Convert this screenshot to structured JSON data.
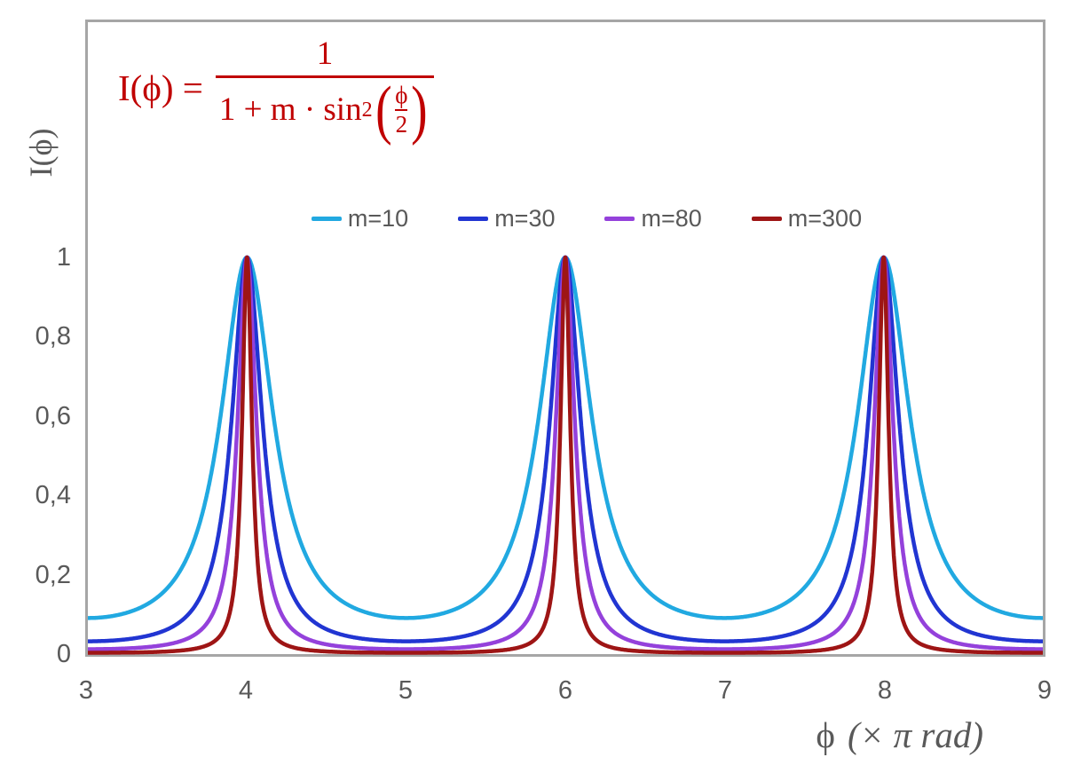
{
  "figure": {
    "background": "#ffffff",
    "frame_color": "#A6A6A6",
    "text_color": "#595959",
    "formula_color": "#C00000"
  },
  "formula": {
    "lhs": "I(ϕ) =",
    "numerator": "1",
    "den_prefix": "1 + m · sin",
    "den_sup": "2",
    "paren_open": "(",
    "paren_close": ")",
    "inner_numerator": "ϕ",
    "inner_denominator": "2"
  },
  "chart_data": {
    "type": "line",
    "title": "",
    "ylabel": "I(ϕ)",
    "xlabel_phi": "ϕ",
    "xlabel_units": "(× π rad)",
    "function": "I(phi) = 1 / (1 + m * sin^2(phi/2)), x axis gives phi in units of pi rad",
    "x_range": [
      3,
      9
    ],
    "y_range": [
      0,
      1.6
    ],
    "grid": false,
    "legend_position": "top-center",
    "x_ticks": [
      {
        "value": 3,
        "label": "3"
      },
      {
        "value": 4,
        "label": "4"
      },
      {
        "value": 5,
        "label": "5"
      },
      {
        "value": 6,
        "label": "6"
      },
      {
        "value": 7,
        "label": "7"
      },
      {
        "value": 8,
        "label": "8"
      },
      {
        "value": 9,
        "label": "9"
      }
    ],
    "y_ticks": [
      {
        "value": 0,
        "label": "0"
      },
      {
        "value": 0.2,
        "label": "0,2"
      },
      {
        "value": 0.4,
        "label": "0,4"
      },
      {
        "value": 0.6,
        "label": "0,6"
      },
      {
        "value": 0.8,
        "label": "0,8"
      },
      {
        "value": 1,
        "label": "1"
      }
    ],
    "series": [
      {
        "name": "m=10",
        "m": 10,
        "color": "#21A9E1",
        "peak_value": 1,
        "min_value": 0.0909
      },
      {
        "name": "m=30",
        "m": 30,
        "color": "#2135D2",
        "peak_value": 1,
        "min_value": 0.0323
      },
      {
        "name": "m=80",
        "m": 80,
        "color": "#9441DB",
        "peak_value": 1,
        "min_value": 0.0123
      },
      {
        "name": "m=300",
        "m": 300,
        "color": "#9E1515",
        "peak_value": 1,
        "min_value": 0.0033
      }
    ],
    "peaks_at_x": [
      4,
      6,
      8
    ],
    "minima_at_x": [
      3,
      5,
      7,
      9
    ]
  }
}
